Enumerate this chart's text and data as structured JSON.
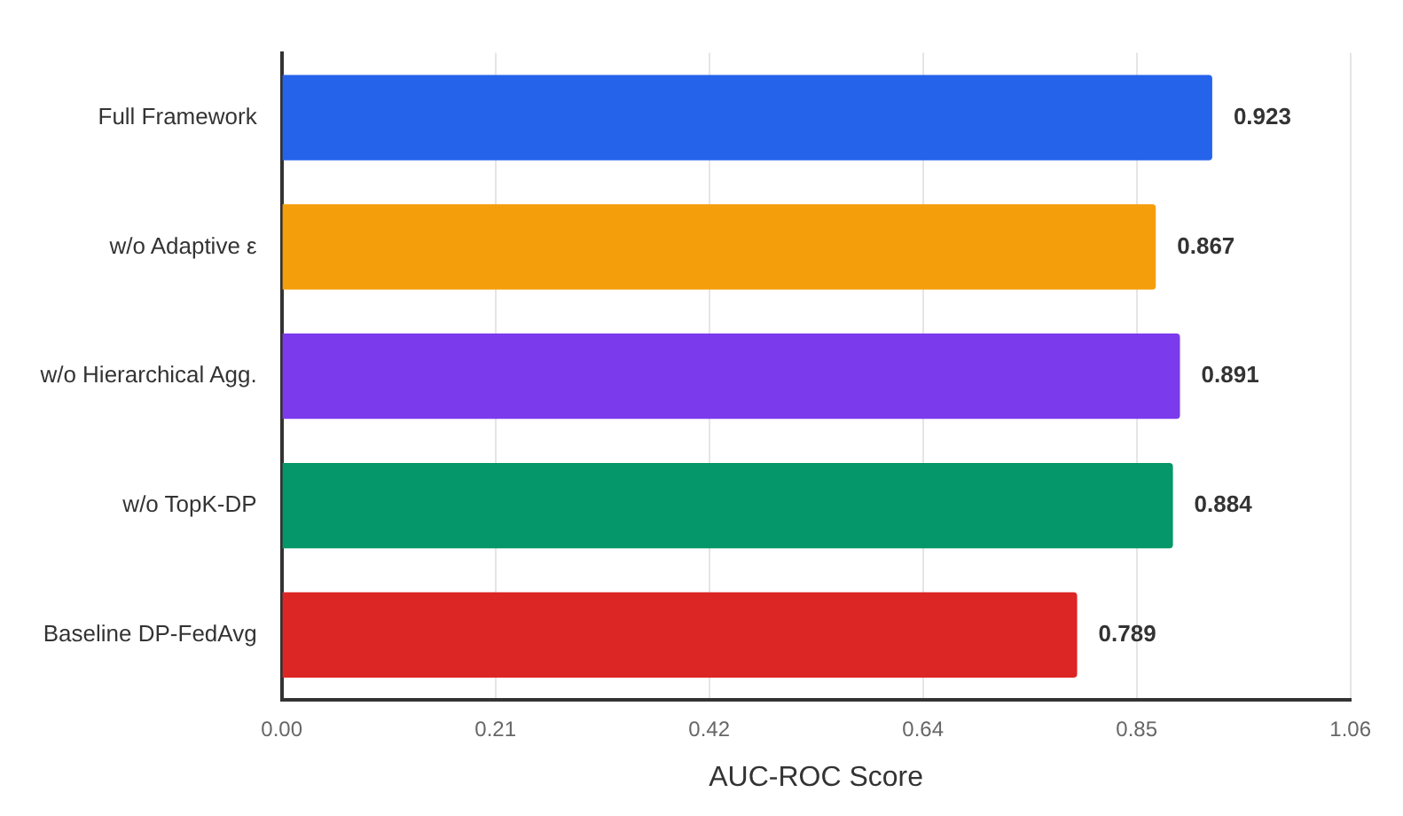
{
  "chart_data": {
    "type": "bar",
    "orientation": "horizontal",
    "xlabel": "AUC-ROC Score",
    "categories": [
      "Full Framework",
      "w/o Adaptive ε",
      "w/o Hierarchical Agg.",
      "w/o TopK-DP",
      "Baseline DP-FedAvg"
    ],
    "values": [
      0.923,
      0.867,
      0.891,
      0.884,
      0.789
    ],
    "colors": [
      "#2563eb",
      "#f59e0b",
      "#7c3aed",
      "#059669",
      "#dc2626"
    ],
    "xlim": [
      0,
      1.06
    ],
    "xticks": [
      {
        "value": 0,
        "label": "0.00"
      },
      {
        "value": 0.212,
        "label": "0.21"
      },
      {
        "value": 0.424,
        "label": "0.42"
      },
      {
        "value": 0.636,
        "label": "0.64"
      },
      {
        "value": 0.848,
        "label": "0.85"
      },
      1.06
    ],
    "data_labels": true,
    "grid": "x"
  }
}
